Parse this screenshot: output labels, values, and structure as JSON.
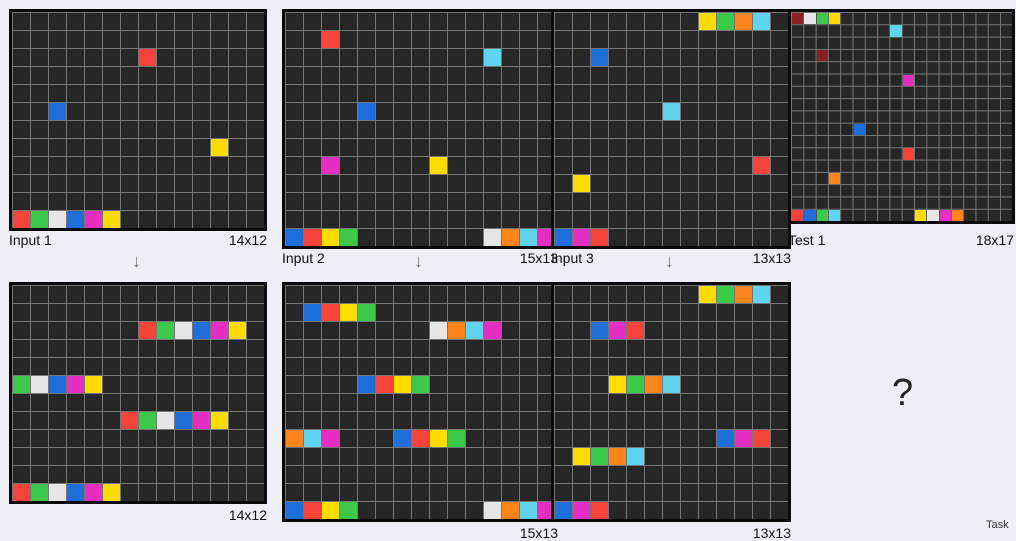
{
  "colors": {
    "0": "#262626",
    "1": "#1e6fd9",
    "2": "#f7443a",
    "3": "#3cc94a",
    "4": "#ffdc00",
    "5": "#999999",
    "6": "#e62ec3",
    "7": "#ff851b",
    "8": "#5ed4ef",
    "9": "#8c1e28",
    "10": "#e6e6e6"
  },
  "pairs": [
    {
      "input_label": "Input 1",
      "input_size": "14x12",
      "output_size": "14x12",
      "arrow": "↓",
      "input": {
        "w": 14,
        "h": 12,
        "cells": [
          [
            11,
            0,
            2
          ],
          [
            11,
            1,
            3
          ],
          [
            11,
            2,
            10
          ],
          [
            11,
            3,
            1
          ],
          [
            11,
            4,
            6
          ],
          [
            11,
            5,
            4
          ],
          [
            2,
            7,
            2
          ],
          [
            5,
            2,
            1
          ],
          [
            7,
            11,
            4
          ]
        ]
      },
      "output": {
        "w": 14,
        "h": 12,
        "cells": [
          [
            11,
            0,
            2
          ],
          [
            11,
            1,
            3
          ],
          [
            11,
            2,
            10
          ],
          [
            11,
            3,
            1
          ],
          [
            11,
            4,
            6
          ],
          [
            11,
            5,
            4
          ],
          [
            2,
            7,
            2
          ],
          [
            2,
            8,
            3
          ],
          [
            2,
            9,
            10
          ],
          [
            2,
            10,
            1
          ],
          [
            2,
            11,
            6
          ],
          [
            2,
            12,
            4
          ],
          [
            5,
            0,
            3
          ],
          [
            5,
            1,
            10
          ],
          [
            5,
            2,
            1
          ],
          [
            5,
            3,
            6
          ],
          [
            5,
            4,
            4
          ],
          [
            7,
            6,
            2
          ],
          [
            7,
            7,
            3
          ],
          [
            7,
            8,
            10
          ],
          [
            7,
            9,
            1
          ],
          [
            7,
            10,
            6
          ],
          [
            7,
            11,
            4
          ]
        ]
      }
    },
    {
      "input_label": "Input 2",
      "input_size": "15x13",
      "output_size": "15x13",
      "arrow": "↓",
      "input": {
        "w": 15,
        "h": 13,
        "cells": [
          [
            12,
            0,
            1
          ],
          [
            12,
            1,
            2
          ],
          [
            12,
            2,
            4
          ],
          [
            12,
            3,
            3
          ],
          [
            12,
            11,
            10
          ],
          [
            12,
            12,
            7
          ],
          [
            12,
            13,
            8
          ],
          [
            12,
            14,
            6
          ],
          [
            1,
            2,
            2
          ],
          [
            2,
            11,
            8
          ],
          [
            5,
            4,
            1
          ],
          [
            8,
            2,
            6
          ],
          [
            8,
            8,
            4
          ]
        ]
      },
      "output": {
        "w": 15,
        "h": 13,
        "cells": [
          [
            12,
            0,
            1
          ],
          [
            12,
            1,
            2
          ],
          [
            12,
            2,
            4
          ],
          [
            12,
            3,
            3
          ],
          [
            12,
            11,
            10
          ],
          [
            12,
            12,
            7
          ],
          [
            12,
            13,
            8
          ],
          [
            12,
            14,
            6
          ],
          [
            1,
            1,
            1
          ],
          [
            1,
            2,
            2
          ],
          [
            1,
            3,
            4
          ],
          [
            1,
            4,
            3
          ],
          [
            2,
            8,
            10
          ],
          [
            2,
            9,
            7
          ],
          [
            2,
            10,
            8
          ],
          [
            2,
            11,
            6
          ],
          [
            5,
            4,
            1
          ],
          [
            5,
            5,
            2
          ],
          [
            5,
            6,
            4
          ],
          [
            5,
            7,
            3
          ],
          [
            8,
            0,
            7
          ],
          [
            8,
            1,
            8
          ],
          [
            8,
            2,
            6
          ],
          [
            8,
            6,
            1
          ],
          [
            8,
            7,
            2
          ],
          [
            8,
            8,
            4
          ],
          [
            8,
            9,
            3
          ]
        ]
      }
    },
    {
      "input_label": "Input 3",
      "input_size": "13x13",
      "output_size": "13x13",
      "arrow": "↓",
      "input": {
        "w": 13,
        "h": 13,
        "cells": [
          [
            0,
            8,
            4
          ],
          [
            0,
            9,
            3
          ],
          [
            0,
            10,
            7
          ],
          [
            0,
            11,
            8
          ],
          [
            12,
            0,
            1
          ],
          [
            12,
            1,
            6
          ],
          [
            12,
            2,
            2
          ],
          [
            2,
            2,
            1
          ],
          [
            5,
            6,
            8
          ],
          [
            8,
            11,
            2
          ],
          [
            9,
            1,
            4
          ]
        ]
      },
      "output": {
        "w": 13,
        "h": 13,
        "cells": [
          [
            0,
            8,
            4
          ],
          [
            0,
            9,
            3
          ],
          [
            0,
            10,
            7
          ],
          [
            0,
            11,
            8
          ],
          [
            12,
            0,
            1
          ],
          [
            12,
            1,
            6
          ],
          [
            12,
            2,
            2
          ],
          [
            2,
            2,
            1
          ],
          [
            2,
            3,
            6
          ],
          [
            2,
            4,
            2
          ],
          [
            5,
            3,
            4
          ],
          [
            5,
            4,
            3
          ],
          [
            5,
            5,
            7
          ],
          [
            5,
            6,
            8
          ],
          [
            8,
            9,
            1
          ],
          [
            8,
            10,
            6
          ],
          [
            8,
            11,
            2
          ],
          [
            9,
            1,
            4
          ],
          [
            9,
            2,
            3
          ],
          [
            9,
            3,
            7
          ],
          [
            9,
            4,
            8
          ]
        ]
      }
    }
  ],
  "test": {
    "label": "Test 1",
    "size": "18x17",
    "input": {
      "w": 18,
      "h": 17,
      "cells": [
        [
          0,
          0,
          9
        ],
        [
          0,
          1,
          10
        ],
        [
          0,
          2,
          3
        ],
        [
          0,
          3,
          4
        ],
        [
          16,
          0,
          2
        ],
        [
          16,
          1,
          1
        ],
        [
          16,
          2,
          3
        ],
        [
          16,
          3,
          8
        ],
        [
          16,
          10,
          4
        ],
        [
          16,
          11,
          10
        ],
        [
          16,
          12,
          6
        ],
        [
          16,
          13,
          7
        ],
        [
          1,
          8,
          8
        ],
        [
          3,
          2,
          9
        ],
        [
          5,
          9,
          6
        ],
        [
          9,
          5,
          1
        ],
        [
          11,
          9,
          2
        ],
        [
          13,
          3,
          7
        ]
      ]
    }
  },
  "question": "?",
  "task_label": "Task"
}
